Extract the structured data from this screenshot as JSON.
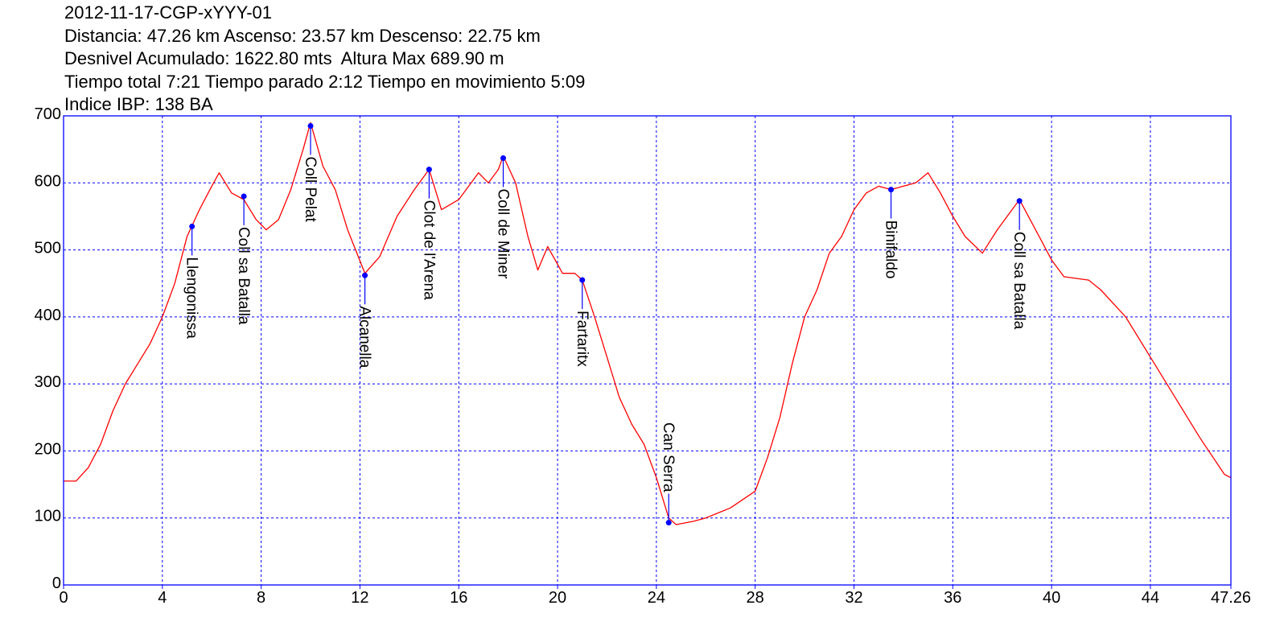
{
  "header": {
    "line1": "2012-11-17-CGP-xYYY-01",
    "line2": "Distancia: 47.26 km Ascenso: 23.57 km Descenso: 22.75 km",
    "line3": "Desnivel Acumulado: 1622.80 mts  Altura Max 689.90 m",
    "line4": "Tiempo total 7:21 Tiempo parado 2:12 Tiempo en movimiento 5:09",
    "line5": "Indice IBP: 138 BA"
  },
  "colors": {
    "profile": "#ff0000",
    "frame": "#0000ff",
    "grid": "#0000ff",
    "marker": "#0000ff",
    "text": "#000000"
  },
  "chart_data": {
    "type": "line",
    "title": "2012-11-17-CGP-xYYY-01",
    "xlabel": "",
    "ylabel": "",
    "xlim": [
      0,
      47.26
    ],
    "ylim": [
      0,
      700
    ],
    "grid": true,
    "x_ticks": [
      "0",
      "4",
      "8",
      "12",
      "16",
      "20",
      "24",
      "28",
      "32",
      "36",
      "40",
      "44",
      "47.26"
    ],
    "y_ticks": [
      "0",
      "100",
      "200",
      "300",
      "400",
      "500",
      "600",
      "700"
    ],
    "series": [
      {
        "name": "",
        "points": [
          [
            0,
            155
          ],
          [
            0.5,
            155
          ],
          [
            1,
            175
          ],
          [
            1.5,
            210
          ],
          [
            2,
            260
          ],
          [
            2.5,
            300
          ],
          [
            3,
            330
          ],
          [
            3.5,
            360
          ],
          [
            4,
            400
          ],
          [
            4.5,
            450
          ],
          [
            5,
            520
          ],
          [
            5.5,
            560
          ],
          [
            6,
            595
          ],
          [
            6.3,
            615
          ],
          [
            6.8,
            585
          ],
          [
            7.3,
            575
          ],
          [
            7.8,
            545
          ],
          [
            8.2,
            530
          ],
          [
            8.7,
            545
          ],
          [
            9.2,
            590
          ],
          [
            9.7,
            650
          ],
          [
            10,
            690
          ],
          [
            10.5,
            625
          ],
          [
            11,
            590
          ],
          [
            11.5,
            530
          ],
          [
            12.2,
            465
          ],
          [
            12.8,
            490
          ],
          [
            13.5,
            550
          ],
          [
            14.2,
            590
          ],
          [
            14.8,
            620
          ],
          [
            15.3,
            560
          ],
          [
            16,
            575
          ],
          [
            16.5,
            600
          ],
          [
            16.8,
            615
          ],
          [
            17.2,
            600
          ],
          [
            17.6,
            620
          ],
          [
            17.8,
            640
          ],
          [
            18.3,
            600
          ],
          [
            18.8,
            520
          ],
          [
            19.2,
            470
          ],
          [
            19.6,
            505
          ],
          [
            20.2,
            465
          ],
          [
            20.7,
            465
          ],
          [
            21,
            455
          ],
          [
            21.5,
            400
          ],
          [
            22,
            340
          ],
          [
            22.5,
            280
          ],
          [
            23,
            240
          ],
          [
            23.5,
            210
          ],
          [
            24,
            160
          ],
          [
            24.5,
            100
          ],
          [
            24.8,
            90
          ],
          [
            25.5,
            95
          ],
          [
            26,
            100
          ],
          [
            27,
            115
          ],
          [
            28,
            140
          ],
          [
            28.5,
            190
          ],
          [
            29,
            250
          ],
          [
            29.5,
            330
          ],
          [
            30,
            400
          ],
          [
            30.5,
            440
          ],
          [
            31,
            495
          ],
          [
            31.5,
            520
          ],
          [
            32,
            560
          ],
          [
            32.5,
            585
          ],
          [
            33,
            595
          ],
          [
            33.5,
            590
          ],
          [
            34,
            595
          ],
          [
            34.5,
            600
          ],
          [
            35,
            615
          ],
          [
            35.5,
            585
          ],
          [
            36,
            550
          ],
          [
            36.5,
            520
          ],
          [
            37.2,
            495
          ],
          [
            37.8,
            530
          ],
          [
            38.7,
            575
          ],
          [
            39.5,
            520
          ],
          [
            40,
            485
          ],
          [
            40.5,
            460
          ],
          [
            41.5,
            455
          ],
          [
            42,
            440
          ],
          [
            43,
            400
          ],
          [
            44,
            340
          ],
          [
            45,
            280
          ],
          [
            46,
            220
          ],
          [
            47,
            165
          ],
          [
            47.26,
            160
          ]
        ]
      }
    ],
    "waypoints": [
      {
        "name": "Llengonissa",
        "x": 5.2,
        "y": 535,
        "label_dir": "down"
      },
      {
        "name": "Coll sa Batalla",
        "x": 7.3,
        "y": 580,
        "label_dir": "down"
      },
      {
        "name": "Coll Pelat",
        "x": 10,
        "y": 685,
        "label_dir": "down"
      },
      {
        "name": "Alcanella",
        "x": 12.2,
        "y": 462,
        "label_dir": "down"
      },
      {
        "name": "Clot de l'Arena",
        "x": 14.8,
        "y": 620,
        "label_dir": "down"
      },
      {
        "name": "Coll de Miner",
        "x": 17.8,
        "y": 637,
        "label_dir": "down"
      },
      {
        "name": "Fartaritx",
        "x": 21,
        "y": 455,
        "label_dir": "down"
      },
      {
        "name": "Can Serra",
        "x": 24.5,
        "y": 93,
        "label_dir": "up"
      },
      {
        "name": "Binifaldo",
        "x": 33.5,
        "y": 590,
        "label_dir": "down"
      },
      {
        "name": "Coll sa Batalla",
        "x": 38.7,
        "y": 573,
        "label_dir": "down"
      }
    ]
  }
}
